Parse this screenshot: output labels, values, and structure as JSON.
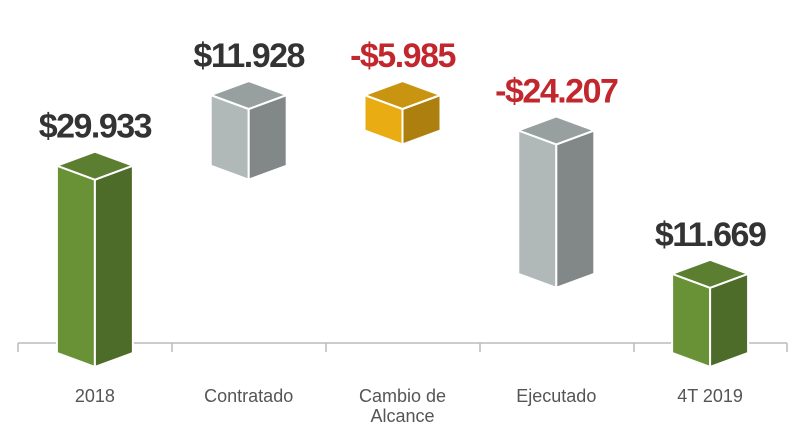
{
  "chart_data": {
    "type": "waterfall",
    "categories": [
      "2018",
      "Contratado",
      "Cambio de Alcance",
      "Ejecutado",
      "4T 2019"
    ],
    "values": [
      29933,
      11928,
      -5985,
      -24207,
      11669
    ],
    "value_labels": [
      "$29.933",
      "$11.928",
      "-$5.985",
      "-$24.207",
      "$11.669"
    ],
    "kinds": [
      "total",
      "delta",
      "delta",
      "delta",
      "total"
    ],
    "colors": [
      "#6f9a3a",
      "#b9c2c2",
      "#f5b514",
      "#b9c2c2",
      "#6f9a3a"
    ],
    "label_colors": [
      "#333333",
      "#333333",
      "#c1272d",
      "#c1272d",
      "#333333"
    ]
  }
}
